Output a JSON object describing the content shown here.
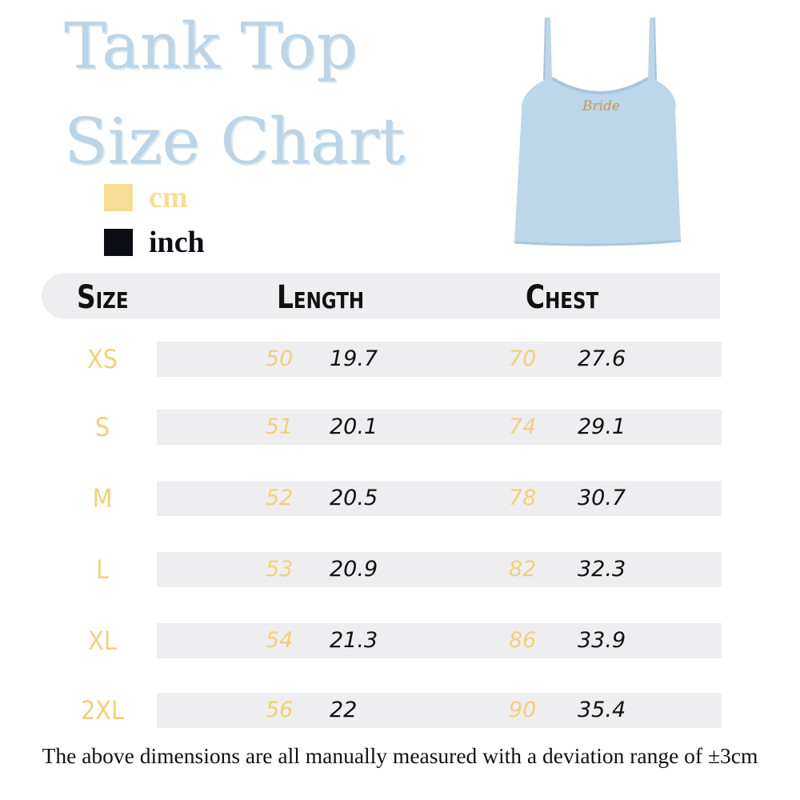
{
  "title": {
    "line1": "Tank Top",
    "line2": "Size Chart"
  },
  "legend": [
    {
      "label": "cm",
      "color": "#f6dd96"
    },
    {
      "label": "inch",
      "color": "#0d0d14"
    }
  ],
  "product_image": {
    "icon": "tank-top-image",
    "print_text": "Bride",
    "garment_color": "#bcd6ea"
  },
  "colors": {
    "title": "#bcd4e6",
    "cm_value": "#f2d07a",
    "inch_value": "#111111",
    "row_bg": "#eeeef1"
  },
  "table": {
    "headers": [
      "Size",
      "Length",
      "Chest"
    ],
    "rows": [
      {
        "size": "XS",
        "length_cm": "50",
        "length_in": "19.7",
        "chest_cm": "70",
        "chest_in": "27.6"
      },
      {
        "size": "S",
        "length_cm": "51",
        "length_in": "20.1",
        "chest_cm": "74",
        "chest_in": "29.1"
      },
      {
        "size": "M",
        "length_cm": "52",
        "length_in": "20.5",
        "chest_cm": "78",
        "chest_in": "30.7"
      },
      {
        "size": "L",
        "length_cm": "53",
        "length_in": "20.9",
        "chest_cm": "82",
        "chest_in": "32.3"
      },
      {
        "size": "XL",
        "length_cm": "54",
        "length_in": "21.3",
        "chest_cm": "86",
        "chest_in": "33.9"
      },
      {
        "size": "2XL",
        "length_cm": "56",
        "length_in": "22",
        "chest_cm": "90",
        "chest_in": "35.4"
      }
    ]
  },
  "note": "The above dimensions are all manually measured with a deviation range of ±3cm"
}
